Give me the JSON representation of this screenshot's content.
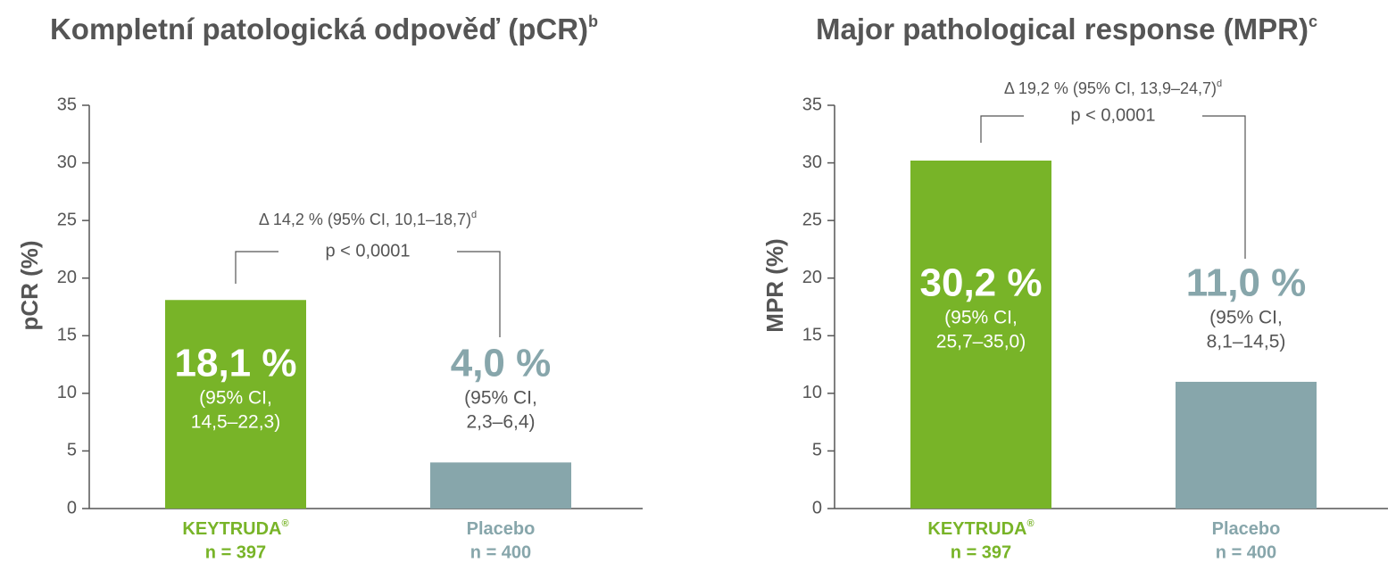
{
  "chart_data": [
    {
      "type": "bar",
      "title": "Kompletní patologická odpověď (pCR)",
      "title_sup": "b",
      "ylabel": "pCR (%)",
      "categories": [
        "KEYTRUDA",
        "Placebo"
      ],
      "trademark": "®",
      "category_notes": [
        "n = 397",
        "n = 400"
      ],
      "category_colors": [
        "#78b428",
        "#87a6ab"
      ],
      "values": [
        18.1,
        4.0
      ],
      "value_labels": [
        "18,1 %",
        "4,0 %"
      ],
      "colors": [
        "#78b428",
        "#87a6ab"
      ],
      "ci_labels": [
        [
          "(95% CI,",
          "14,5–22,3)"
        ],
        [
          "(95% CI,",
          "2,3–6,4)"
        ]
      ],
      "annotation": {
        "text": "Δ 14,2 % (95% CI, 10,1–18,7)",
        "sup": "d",
        "p": "p < 0,0001"
      },
      "ylim": [
        0,
        35
      ],
      "yticks": [
        0,
        5,
        10,
        15,
        20,
        25,
        30,
        35
      ]
    },
    {
      "type": "bar",
      "title": "Major pathological response (MPR)",
      "title_sup": "c",
      "ylabel": "MPR (%)",
      "categories": [
        "KEYTRUDA",
        "Placebo"
      ],
      "trademark": "®",
      "category_notes": [
        "n = 397",
        "n = 400"
      ],
      "category_colors": [
        "#78b428",
        "#87a6ab"
      ],
      "values": [
        30.2,
        11.0
      ],
      "value_labels": [
        "30,2 %",
        "11,0 %"
      ],
      "colors": [
        "#78b428",
        "#87a6ab"
      ],
      "ci_labels": [
        [
          "(95% CI,",
          "25,7–35,0)"
        ],
        [
          "(95% CI,",
          "8,1–14,5)"
        ]
      ],
      "annotation": {
        "text": "Δ 19,2 % (95% CI, 13,9–24,7)",
        "sup": "d",
        "p": "p < 0,0001"
      },
      "ylim": [
        0,
        35
      ],
      "yticks": [
        0,
        5,
        10,
        15,
        20,
        25,
        30,
        35
      ]
    }
  ]
}
